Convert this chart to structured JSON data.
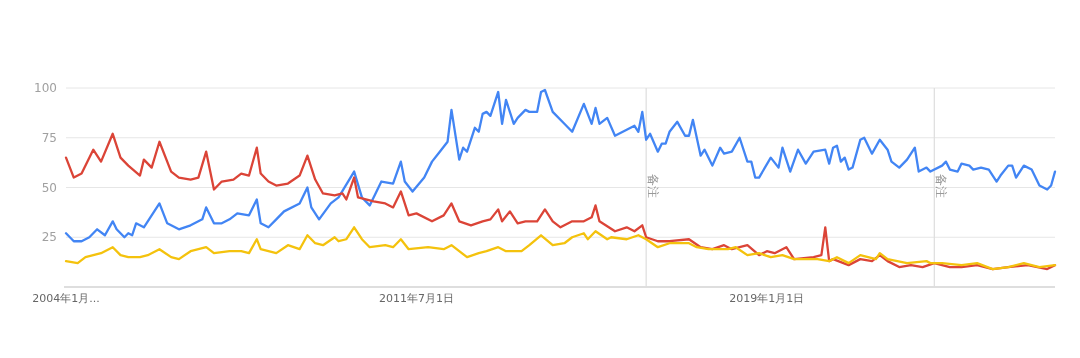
{
  "chart_data": {
    "type": "line",
    "xlim": [
      "2004-01",
      "2025-03"
    ],
    "ylim": [
      0,
      100
    ],
    "yticks": [
      25,
      50,
      75,
      100
    ],
    "grid": "y",
    "xticks": [
      {
        "value": "2004-01",
        "label": "2004年1月..."
      },
      {
        "value": "2011-07",
        "label": "2011年7月1日"
      },
      {
        "value": "2019-01",
        "label": "2019年1月1日"
      }
    ],
    "ref_lines": [
      {
        "axis": "x",
        "value": "2016-06",
        "label": "备注",
        "color": "#dddddd"
      },
      {
        "axis": "x",
        "value": "2022-08",
        "label": "备注",
        "color": "#dddddd"
      }
    ],
    "series": [
      {
        "color": "#4285f4",
        "x": [
          "2004-01",
          "2004-03",
          "2004-05",
          "2004-07",
          "2004-09",
          "2004-11",
          "2005-01",
          "2005-02",
          "2005-04",
          "2005-05",
          "2005-06",
          "2005-07",
          "2005-09",
          "2006-01",
          "2006-03",
          "2006-06",
          "2006-09",
          "2006-12",
          "2007-01",
          "2007-03",
          "2007-05",
          "2007-07",
          "2007-09",
          "2007-12",
          "2008-02",
          "2008-03",
          "2008-05",
          "2008-07",
          "2008-09",
          "2009-01",
          "2009-03",
          "2009-04",
          "2009-06",
          "2009-09",
          "2009-11",
          "2010-03",
          "2010-05",
          "2010-07",
          "2010-10",
          "2011-01",
          "2011-03",
          "2011-04",
          "2011-06",
          "2011-09",
          "2011-11",
          "2012-01",
          "2012-03",
          "2012-04",
          "2012-06",
          "2012-07",
          "2012-08",
          "2012-10",
          "2012-11",
          "2012-12",
          "2013-01",
          "2013-02",
          "2013-04",
          "2013-05",
          "2013-06",
          "2013-08",
          "2013-09",
          "2013-11",
          "2013-12",
          "2014-02",
          "2014-03",
          "2014-04",
          "2014-06",
          "2014-09",
          "2014-11",
          "2015-02",
          "2015-04",
          "2015-05",
          "2015-06",
          "2015-08",
          "2015-10",
          "2016-01",
          "2016-03",
          "2016-04",
          "2016-05",
          "2016-06",
          "2016-07",
          "2016-09",
          "2016-10",
          "2016-11",
          "2016-12",
          "2017-02",
          "2017-04",
          "2017-05",
          "2017-06",
          "2017-08",
          "2017-09",
          "2017-11",
          "2018-01",
          "2018-02",
          "2018-04",
          "2018-06",
          "2018-08",
          "2018-09",
          "2018-10",
          "2018-11",
          "2019-02",
          "2019-04",
          "2019-05",
          "2019-07",
          "2019-09",
          "2019-11",
          "2020-01",
          "2020-04",
          "2020-05",
          "2020-06",
          "2020-07",
          "2020-08",
          "2020-09",
          "2020-10",
          "2020-11",
          "2021-01",
          "2021-02",
          "2021-04",
          "2021-06",
          "2021-08",
          "2021-09",
          "2021-11",
          "2022-01",
          "2022-03",
          "2022-04",
          "2022-06",
          "2022-07",
          "2022-10",
          "2022-11",
          "2022-12",
          "2023-02",
          "2023-03",
          "2023-05",
          "2023-06",
          "2023-08",
          "2023-10",
          "2023-12",
          "2024-01",
          "2024-03",
          "2024-04",
          "2024-05",
          "2024-07",
          "2024-09",
          "2024-11",
          "2025-01",
          "2025-02",
          "2025-03"
        ],
        "values": [
          27,
          23,
          23,
          25,
          29,
          26,
          33,
          29,
          25,
          27,
          26,
          32,
          30,
          42,
          32,
          29,
          31,
          34,
          40,
          32,
          32,
          34,
          37,
          36,
          44,
          32,
          30,
          34,
          38,
          42,
          50,
          40,
          34,
          42,
          45,
          58,
          45,
          41,
          53,
          52,
          63,
          53,
          48,
          55,
          63,
          68,
          73,
          89,
          64,
          70,
          68,
          80,
          78,
          87,
          88,
          86,
          98,
          82,
          94,
          82,
          85,
          89,
          88,
          88,
          98,
          99,
          88,
          82,
          78,
          92,
          82,
          90,
          82,
          85,
          76,
          79,
          81,
          78,
          88,
          74,
          77,
          68,
          72,
          72,
          78,
          83,
          76,
          76,
          84,
          66,
          69,
          61,
          70,
          67,
          68,
          75,
          63,
          63,
          55,
          55,
          65,
          60,
          70,
          58,
          69,
          62,
          68,
          69,
          62,
          70,
          71,
          63,
          65,
          59,
          60,
          74,
          75,
          67,
          74,
          69,
          63,
          60,
          64,
          70,
          58,
          60,
          58,
          61,
          63,
          59,
          58,
          62,
          61,
          59,
          60,
          59,
          53,
          56,
          61,
          61,
          55,
          61,
          59,
          51,
          49,
          51,
          58
        ]
      },
      {
        "color": "#db4437",
        "x": [
          "2004-01",
          "2004-03",
          "2004-05",
          "2004-08",
          "2004-10",
          "2005-01",
          "2005-03",
          "2005-05",
          "2005-08",
          "2005-09",
          "2005-11",
          "2006-01",
          "2006-04",
          "2006-06",
          "2006-09",
          "2006-11",
          "2007-01",
          "2007-03",
          "2007-05",
          "2007-08",
          "2007-10",
          "2007-12",
          "2008-02",
          "2008-03",
          "2008-05",
          "2008-07",
          "2008-10",
          "2009-01",
          "2009-03",
          "2009-05",
          "2009-07",
          "2009-10",
          "2009-12",
          "2010-01",
          "2010-03",
          "2010-04",
          "2010-08",
          "2010-11",
          "2011-01",
          "2011-03",
          "2011-05",
          "2011-07",
          "2011-11",
          "2012-02",
          "2012-04",
          "2012-06",
          "2012-09",
          "2012-12",
          "2013-02",
          "2013-04",
          "2013-05",
          "2013-07",
          "2013-09",
          "2013-11",
          "2014-02",
          "2014-04",
          "2014-06",
          "2014-08",
          "2014-11",
          "2015-02",
          "2015-04",
          "2015-05",
          "2015-06",
          "2015-10",
          "2016-01",
          "2016-03",
          "2016-05",
          "2016-06",
          "2016-09",
          "2016-12",
          "2017-05",
          "2017-08",
          "2017-11",
          "2018-02",
          "2018-04",
          "2018-08",
          "2018-11",
          "2019-01",
          "2019-03",
          "2019-06",
          "2019-08",
          "2020-01",
          "2020-03",
          "2020-04",
          "2020-05",
          "2020-06",
          "2020-10",
          "2021-01",
          "2021-04",
          "2021-06",
          "2021-08",
          "2021-11",
          "2022-02",
          "2022-05",
          "2022-08",
          "2022-12",
          "2023-03",
          "2023-07",
          "2023-11",
          "2024-03",
          "2024-08",
          "2025-01",
          "2025-03"
        ],
        "values": [
          65,
          55,
          57,
          69,
          63,
          77,
          65,
          61,
          56,
          64,
          60,
          73,
          58,
          55,
          54,
          55,
          68,
          49,
          53,
          54,
          57,
          56,
          70,
          57,
          53,
          51,
          52,
          56,
          66,
          54,
          47,
          46,
          47,
          44,
          55,
          45,
          43,
          42,
          40,
          48,
          36,
          37,
          33,
          36,
          42,
          33,
          31,
          33,
          34,
          39,
          33,
          38,
          32,
          33,
          33,
          39,
          33,
          30,
          33,
          33,
          35,
          41,
          33,
          28,
          30,
          28,
          31,
          25,
          23,
          23,
          24,
          20,
          19,
          21,
          19,
          21,
          16,
          18,
          17,
          20,
          14,
          15,
          16,
          30,
          13,
          14,
          11,
          14,
          13,
          16,
          13,
          10,
          11,
          10,
          12,
          10,
          10,
          11,
          9,
          10,
          11,
          9,
          11
        ]
      },
      {
        "color": "#f4c20d",
        "x": [
          "2004-01",
          "2004-04",
          "2004-06",
          "2004-08",
          "2004-10",
          "2005-01",
          "2005-03",
          "2005-05",
          "2005-08",
          "2005-10",
          "2006-01",
          "2006-04",
          "2006-06",
          "2006-09",
          "2006-11",
          "2007-01",
          "2007-03",
          "2007-07",
          "2007-10",
          "2007-12",
          "2008-02",
          "2008-03",
          "2008-05",
          "2008-07",
          "2008-10",
          "2009-01",
          "2009-03",
          "2009-05",
          "2009-07",
          "2009-10",
          "2009-11",
          "2010-01",
          "2010-03",
          "2010-05",
          "2010-07",
          "2010-11",
          "2011-01",
          "2011-03",
          "2011-05",
          "2011-10",
          "2012-02",
          "2012-04",
          "2012-08",
          "2012-11",
          "2013-01",
          "2013-04",
          "2013-06",
          "2013-10",
          "2013-12",
          "2014-03",
          "2014-06",
          "2014-09",
          "2014-11",
          "2015-02",
          "2015-03",
          "2015-05",
          "2015-08",
          "2015-09",
          "2016-01",
          "2016-04",
          "2016-06",
          "2016-09",
          "2016-12",
          "2017-05",
          "2017-07",
          "2017-10",
          "2018-03",
          "2018-05",
          "2018-08",
          "2018-11",
          "2019-02",
          "2019-05",
          "2019-08",
          "2020-02",
          "2020-05",
          "2020-07",
          "2020-10",
          "2021-01",
          "2021-05",
          "2021-06",
          "2021-08",
          "2022-01",
          "2022-06",
          "2022-07",
          "2022-10",
          "2023-03",
          "2023-07",
          "2023-11",
          "2024-03",
          "2024-07",
          "2024-11",
          "2025-03"
        ],
        "values": [
          13,
          12,
          15,
          16,
          17,
          20,
          16,
          15,
          15,
          16,
          19,
          15,
          14,
          18,
          19,
          20,
          17,
          18,
          18,
          17,
          24,
          19,
          18,
          17,
          21,
          19,
          26,
          22,
          21,
          25,
          23,
          24,
          30,
          24,
          20,
          21,
          20,
          24,
          19,
          20,
          19,
          21,
          15,
          17,
          18,
          20,
          18,
          18,
          21,
          26,
          21,
          22,
          25,
          27,
          24,
          28,
          24,
          25,
          24,
          26,
          24,
          20,
          22,
          22,
          20,
          19,
          19,
          20,
          16,
          17,
          15,
          16,
          14,
          14,
          13,
          15,
          12,
          16,
          14,
          17,
          14,
          12,
          13,
          12,
          12,
          11,
          12,
          9,
          10,
          12,
          10,
          11
        ]
      }
    ]
  }
}
